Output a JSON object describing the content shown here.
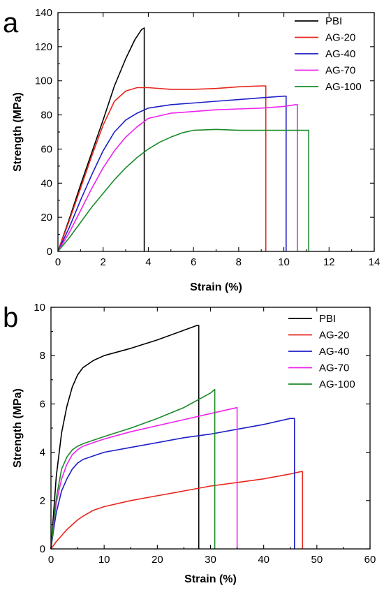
{
  "chart_data": [
    {
      "panel": "a",
      "type": "line",
      "xlabel": "Strain (%)",
      "ylabel": "Strength (MPa)",
      "xlim": [
        0,
        14
      ],
      "ylim": [
        0,
        140
      ],
      "xticks": [
        0,
        2,
        4,
        6,
        8,
        10,
        12,
        14
      ],
      "yticks": [
        0,
        20,
        40,
        60,
        80,
        100,
        120,
        140
      ],
      "legend_position": "top-right",
      "series": [
        {
          "name": "PBI",
          "color": "#000000",
          "points": [
            [
              0,
              0
            ],
            [
              0.5,
              19
            ],
            [
              1,
              39
            ],
            [
              1.5,
              58
            ],
            [
              2,
              77
            ],
            [
              2.5,
              97
            ],
            [
              3,
              113
            ],
            [
              3.4,
              124
            ],
            [
              3.7,
              130
            ],
            [
              3.82,
              131
            ],
            [
              3.82,
              0
            ]
          ]
        },
        {
          "name": "AG-20",
          "color": "#e8261e",
          "points": [
            [
              0,
              0
            ],
            [
              0.5,
              18
            ],
            [
              1,
              37
            ],
            [
              1.5,
              56
            ],
            [
              2,
              74
            ],
            [
              2.5,
              88
            ],
            [
              3,
              94
            ],
            [
              3.5,
              96
            ],
            [
              4,
              96
            ],
            [
              5,
              95
            ],
            [
              6,
              95
            ],
            [
              7,
              95.5
            ],
            [
              8,
              96.5
            ],
            [
              9,
              97
            ],
            [
              9.2,
              97
            ],
            [
              9.2,
              0
            ]
          ]
        },
        {
          "name": "AG-40",
          "color": "#1e1ec8",
          "points": [
            [
              0,
              0
            ],
            [
              0.5,
              14
            ],
            [
              1,
              30
            ],
            [
              1.5,
              45
            ],
            [
              2,
              59
            ],
            [
              2.5,
              70
            ],
            [
              3,
              77
            ],
            [
              3.5,
              81
            ],
            [
              4,
              84
            ],
            [
              5,
              86
            ],
            [
              6,
              87
            ],
            [
              7,
              88
            ],
            [
              8,
              89
            ],
            [
              9,
              90
            ],
            [
              10,
              91
            ],
            [
              10.1,
              91
            ],
            [
              10.1,
              0
            ]
          ]
        },
        {
          "name": "AG-70",
          "color": "#ee22ee",
          "points": [
            [
              0,
              0
            ],
            [
              0.5,
              11
            ],
            [
              1,
              24
            ],
            [
              1.5,
              37
            ],
            [
              2,
              49
            ],
            [
              2.5,
              59
            ],
            [
              3,
              67
            ],
            [
              3.5,
              73
            ],
            [
              4,
              78
            ],
            [
              5,
              81
            ],
            [
              6,
              82
            ],
            [
              7,
              83
            ],
            [
              8,
              83.5
            ],
            [
              9,
              84
            ],
            [
              10,
              85
            ],
            [
              10.5,
              86
            ],
            [
              10.6,
              86
            ],
            [
              10.6,
              0
            ]
          ]
        },
        {
          "name": "AG-100",
          "color": "#1a8a2a",
          "points": [
            [
              0,
              0
            ],
            [
              0.5,
              8
            ],
            [
              1,
              17
            ],
            [
              1.5,
              26
            ],
            [
              2,
              34
            ],
            [
              2.5,
              42
            ],
            [
              3,
              49
            ],
            [
              3.5,
              55
            ],
            [
              4,
              60
            ],
            [
              4.5,
              64
            ],
            [
              5,
              67
            ],
            [
              5.5,
              69.5
            ],
            [
              6,
              71
            ],
            [
              7,
              71.5
            ],
            [
              8,
              71
            ],
            [
              9,
              71
            ],
            [
              10,
              71
            ],
            [
              11,
              71
            ],
            [
              11.1,
              71
            ],
            [
              11.1,
              0
            ]
          ]
        }
      ]
    },
    {
      "panel": "b",
      "type": "line",
      "xlabel": "Strain (%)",
      "ylabel": "Strength (MPa)",
      "xlim": [
        0,
        60
      ],
      "ylim": [
        0,
        10
      ],
      "xticks": [
        0,
        10,
        20,
        30,
        40,
        50,
        60
      ],
      "yticks": [
        0,
        2,
        4,
        6,
        8,
        10
      ],
      "legend_position": "top-right",
      "series": [
        {
          "name": "PBI",
          "color": "#000000",
          "points": [
            [
              0,
              0
            ],
            [
              0.5,
              1.5
            ],
            [
              1,
              3
            ],
            [
              2,
              4.8
            ],
            [
              3,
              5.9
            ],
            [
              4,
              6.7
            ],
            [
              5,
              7.2
            ],
            [
              6,
              7.5
            ],
            [
              8,
              7.8
            ],
            [
              10,
              8
            ],
            [
              15,
              8.3
            ],
            [
              20,
              8.65
            ],
            [
              25,
              9.05
            ],
            [
              27.5,
              9.25
            ],
            [
              27.8,
              9.25
            ],
            [
              27.8,
              0
            ]
          ]
        },
        {
          "name": "AG-20",
          "color": "#e8261e",
          "points": [
            [
              0,
              0
            ],
            [
              1,
              0.3
            ],
            [
              2,
              0.55
            ],
            [
              3,
              0.8
            ],
            [
              4,
              1
            ],
            [
              5,
              1.2
            ],
            [
              6,
              1.35
            ],
            [
              8,
              1.6
            ],
            [
              10,
              1.75
            ],
            [
              15,
              2
            ],
            [
              20,
              2.2
            ],
            [
              25,
              2.4
            ],
            [
              30,
              2.6
            ],
            [
              35,
              2.75
            ],
            [
              40,
              2.9
            ],
            [
              45,
              3.1
            ],
            [
              47,
              3.2
            ],
            [
              47.3,
              3.2
            ],
            [
              47.3,
              0
            ]
          ]
        },
        {
          "name": "AG-40",
          "color": "#1e1ec8",
          "points": [
            [
              0,
              0
            ],
            [
              0.5,
              0.8
            ],
            [
              1,
              1.5
            ],
            [
              2,
              2.4
            ],
            [
              3,
              2.9
            ],
            [
              4,
              3.3
            ],
            [
              5,
              3.55
            ],
            [
              6,
              3.7
            ],
            [
              8,
              3.85
            ],
            [
              10,
              4
            ],
            [
              15,
              4.2
            ],
            [
              20,
              4.4
            ],
            [
              25,
              4.6
            ],
            [
              30,
              4.75
            ],
            [
              35,
              4.95
            ],
            [
              40,
              5.15
            ],
            [
              45,
              5.4
            ],
            [
              45.8,
              5.4
            ],
            [
              45.8,
              0
            ]
          ]
        },
        {
          "name": "AG-70",
          "color": "#ee22ee",
          "points": [
            [
              0,
              0
            ],
            [
              0.5,
              1
            ],
            [
              1,
              1.9
            ],
            [
              2,
              2.9
            ],
            [
              3,
              3.5
            ],
            [
              4,
              3.9
            ],
            [
              5,
              4.1
            ],
            [
              6,
              4.25
            ],
            [
              8,
              4.4
            ],
            [
              10,
              4.55
            ],
            [
              15,
              4.85
            ],
            [
              20,
              5.1
            ],
            [
              25,
              5.35
            ],
            [
              30,
              5.6
            ],
            [
              34,
              5.8
            ],
            [
              35,
              5.85
            ],
            [
              35,
              0
            ]
          ]
        },
        {
          "name": "AG-100",
          "color": "#1a8a2a",
          "points": [
            [
              0,
              0
            ],
            [
              0.5,
              1.1
            ],
            [
              1,
              2.1
            ],
            [
              2,
              3.3
            ],
            [
              3,
              3.8
            ],
            [
              4,
              4.1
            ],
            [
              5,
              4.25
            ],
            [
              6,
              4.35
            ],
            [
              8,
              4.5
            ],
            [
              10,
              4.65
            ],
            [
              15,
              5
            ],
            [
              20,
              5.4
            ],
            [
              25,
              5.85
            ],
            [
              30,
              6.45
            ],
            [
              30.8,
              6.6
            ],
            [
              30.8,
              0
            ]
          ]
        }
      ]
    }
  ]
}
